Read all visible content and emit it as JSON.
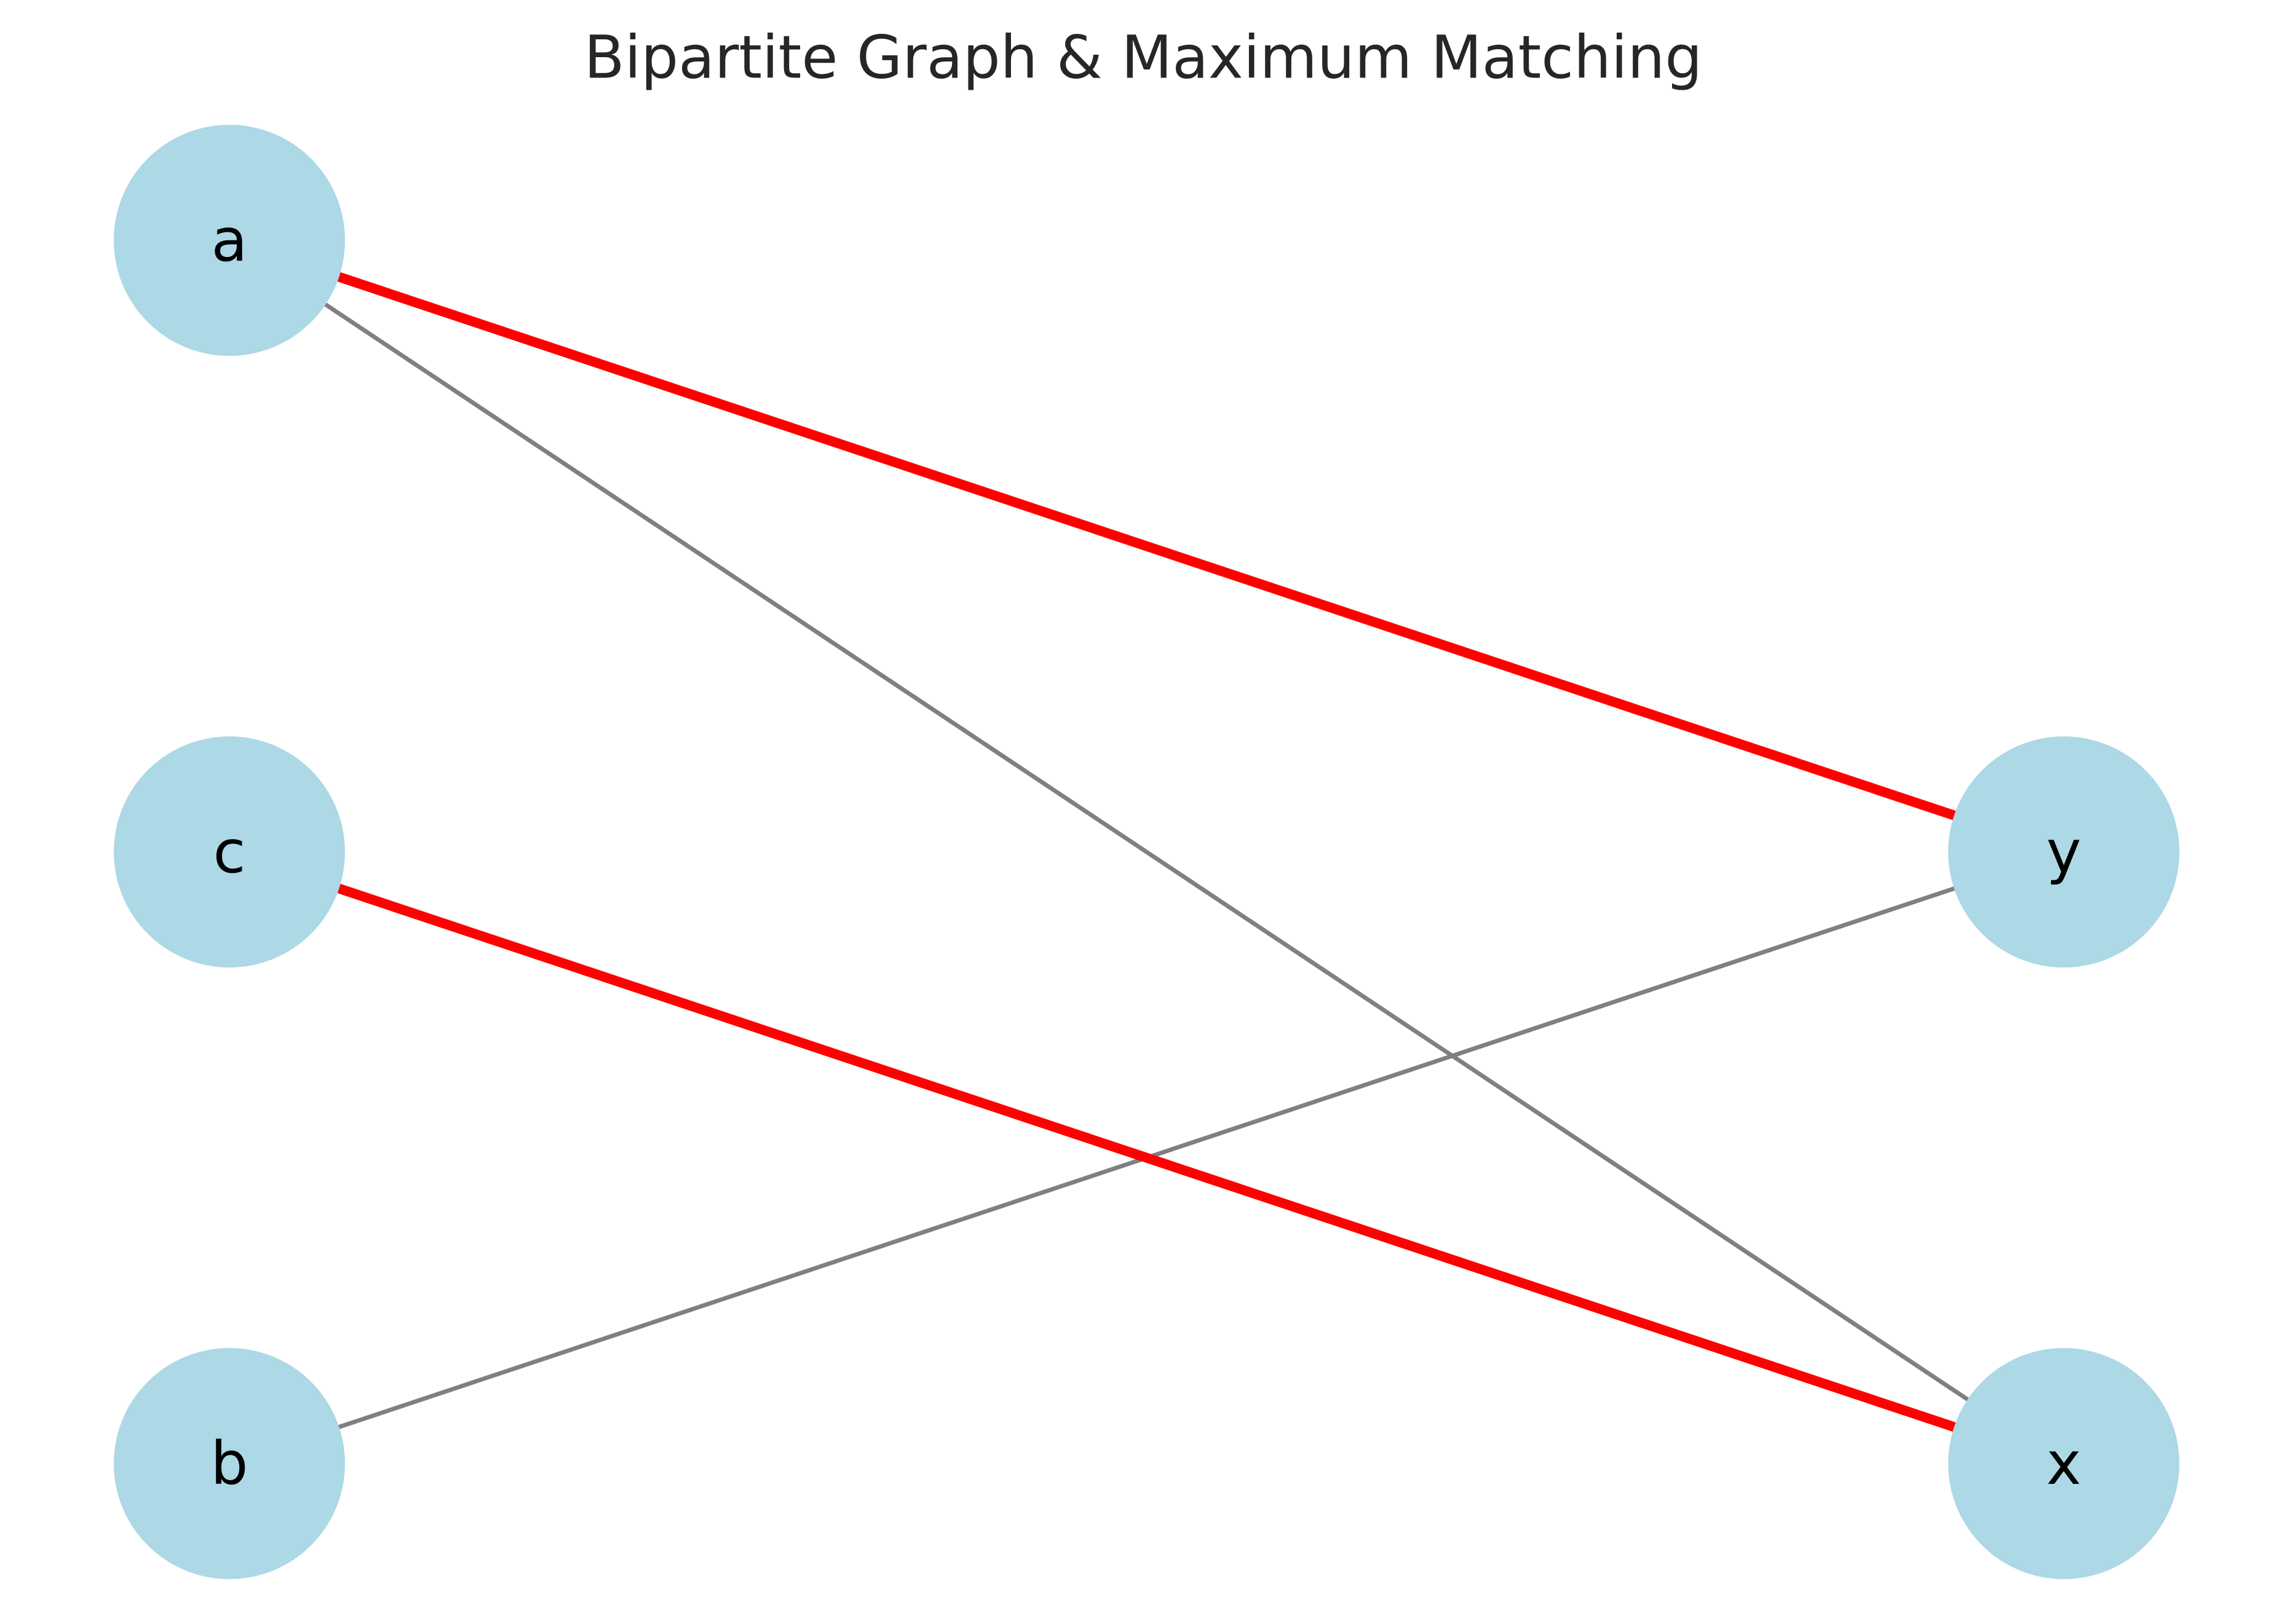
{
  "title": "Bipartite Graph & Maximum Matching",
  "colors": {
    "node_fill": "#add8e6",
    "edge_default": "#808080",
    "edge_matching": "#ff0000",
    "title": "#262626",
    "label": "#000000",
    "background": "#ffffff"
  },
  "nodes": [
    {
      "id": "a",
      "label": "a",
      "side": "left"
    },
    {
      "id": "c",
      "label": "c",
      "side": "left"
    },
    {
      "id": "b",
      "label": "b",
      "side": "left"
    },
    {
      "id": "y",
      "label": "y",
      "side": "right"
    },
    {
      "id": "x",
      "label": "x",
      "side": "right"
    }
  ],
  "edges": [
    {
      "from": "a",
      "to": "x",
      "matching": false
    },
    {
      "from": "b",
      "to": "y",
      "matching": false
    },
    {
      "from": "a",
      "to": "y",
      "matching": true
    },
    {
      "from": "c",
      "to": "x",
      "matching": true
    }
  ]
}
